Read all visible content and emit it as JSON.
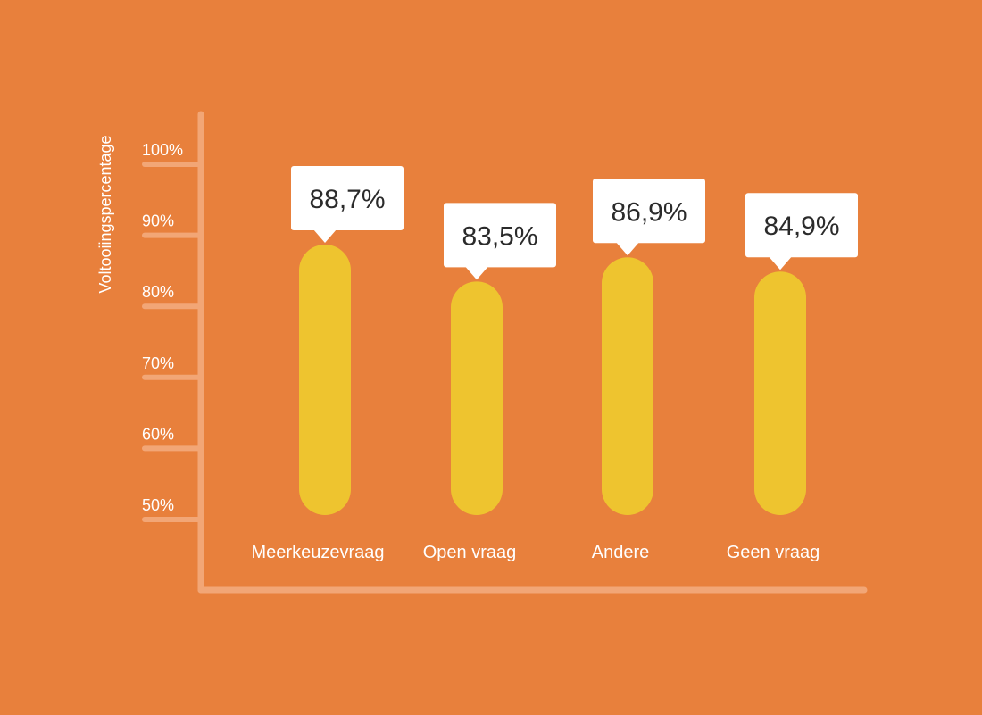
{
  "colors": {
    "background": "#E8803C",
    "axis": "#F2A676",
    "bar": "#EEC42F",
    "callout": "#FFFFFF",
    "callout_text": "#2B2B2B",
    "label_text": "#FFFFFF"
  },
  "chart_data": {
    "type": "bar",
    "title": "",
    "xlabel": "",
    "ylabel": "Voltooiingspercentage",
    "categories": [
      "Meerkeuzevraag",
      "Open vraag",
      "Andere",
      "Geen vraag"
    ],
    "values": [
      88.7,
      83.5,
      86.9,
      84.9
    ],
    "value_labels": [
      "88,7%",
      "83,5%",
      "86,9%",
      "84,9%"
    ],
    "yticks": [
      50,
      60,
      70,
      80,
      90,
      100
    ],
    "ytick_labels": [
      "50%",
      "60%",
      "70%",
      "80%",
      "90%",
      "100%"
    ],
    "ylim": [
      50,
      100
    ],
    "grid": false,
    "legend": "none"
  }
}
